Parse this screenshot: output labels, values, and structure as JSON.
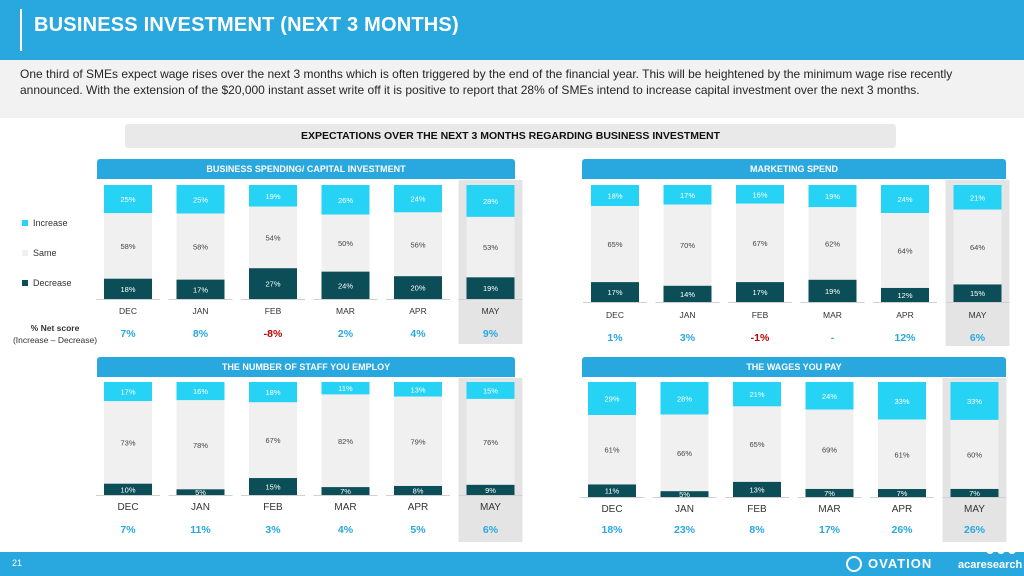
{
  "header": {
    "title": "BUSINESS INVESTMENT (NEXT 3 MONTHS)"
  },
  "intro": {
    "text": "One third of SMEs expect wage rises over the next 3 months which is often triggered by the end of the financial year. This will be heightened by the minimum wage rise recently announced. With the extension of the $20,000 instant asset write off it is positive to report that 28% of SMEs intend to increase capital investment over the next 3 months."
  },
  "banner": {
    "title": "EXPECTATIONS OVER THE NEXT 3 MONTHS REGARDING BUSINESS INVESTMENT"
  },
  "legend": {
    "increase": "Increase",
    "same": "Same",
    "decrease": "Decrease"
  },
  "netscore_label": {
    "line1": "% Net score",
    "line2": "(Increase – Decrease)"
  },
  "colors": {
    "increase": "#27d3f5",
    "same": "#f0f0f0",
    "decrease": "#0c4e57",
    "header": "#29a8df",
    "net": "#29a8df",
    "net_negative": "#c00000",
    "highlight": "#e4e4e4"
  },
  "footer": {
    "page_number": "21",
    "brand1": "OVATION",
    "brand2": "acaresearch"
  },
  "chart_data": [
    {
      "type": "bar",
      "title": "BUSINESS SPENDING/ CAPITAL INVESTMENT",
      "categories": [
        "DEC",
        "JAN",
        "FEB",
        "MAR",
        "APR",
        "MAY"
      ],
      "series": [
        {
          "name": "Increase",
          "values": [
            25,
            25,
            19,
            26,
            24,
            28
          ]
        },
        {
          "name": "Same",
          "values": [
            58,
            58,
            54,
            50,
            56,
            53
          ]
        },
        {
          "name": "Decrease",
          "values": [
            18,
            17,
            27,
            24,
            20,
            19
          ]
        }
      ],
      "net": [
        "7%",
        "8%",
        "-8%",
        "2%",
        "4%",
        "9%"
      ]
    },
    {
      "type": "bar",
      "title": "MARKETING SPEND",
      "categories": [
        "DEC",
        "JAN",
        "FEB",
        "MAR",
        "APR",
        "MAY"
      ],
      "series": [
        {
          "name": "Increase",
          "values": [
            18,
            17,
            16,
            19,
            24,
            21
          ]
        },
        {
          "name": "Same",
          "values": [
            65,
            70,
            67,
            62,
            64,
            64
          ]
        },
        {
          "name": "Decrease",
          "values": [
            17,
            14,
            17,
            19,
            12,
            15
          ]
        }
      ],
      "net": [
        "1%",
        "3%",
        "-1%",
        "-",
        "12%",
        "6%"
      ]
    },
    {
      "type": "bar",
      "title": "THE NUMBER OF STAFF YOU EMPLOY",
      "categories": [
        "DEC",
        "JAN",
        "FEB",
        "MAR",
        "APR",
        "MAY"
      ],
      "series": [
        {
          "name": "Increase",
          "values": [
            17,
            16,
            18,
            11,
            13,
            15
          ]
        },
        {
          "name": "Same",
          "values": [
            73,
            78,
            67,
            82,
            79,
            76
          ]
        },
        {
          "name": "Decrease",
          "values": [
            10,
            5,
            15,
            7,
            8,
            9
          ]
        }
      ],
      "net": [
        "7%",
        "11%",
        "3%",
        "4%",
        "5%",
        "6%"
      ]
    },
    {
      "type": "bar",
      "title": "THE WAGES YOU PAY",
      "categories": [
        "DEC",
        "JAN",
        "FEB",
        "MAR",
        "APR",
        "MAY"
      ],
      "series": [
        {
          "name": "Increase",
          "values": [
            29,
            28,
            21,
            24,
            33,
            33
          ]
        },
        {
          "name": "Same",
          "values": [
            61,
            66,
            65,
            69,
            61,
            60
          ]
        },
        {
          "name": "Decrease",
          "values": [
            11,
            5,
            13,
            7,
            7,
            7
          ]
        }
      ],
      "net": [
        "18%",
        "23%",
        "8%",
        "17%",
        "26%",
        "26%"
      ]
    }
  ]
}
